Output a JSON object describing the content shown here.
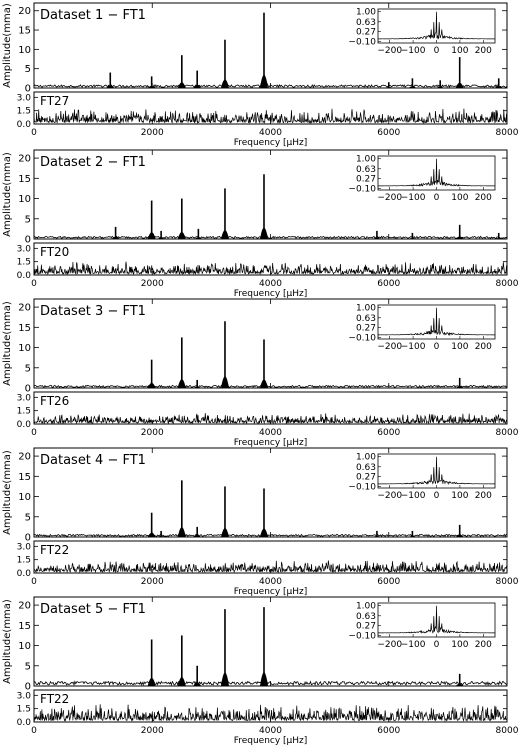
{
  "figure": {
    "xlabel": "Frequency [μHz]",
    "ylabel": "Amplitude(mma)",
    "xlim": [
      0,
      8000
    ],
    "xticks": [
      "0",
      "2000",
      "4000",
      "6000",
      "8000"
    ],
    "main_ylim": [
      0,
      22
    ],
    "main_yticks": [
      "0",
      "5",
      "10",
      "15",
      "20"
    ],
    "residual_ylim": [
      0,
      3.6
    ],
    "residual_yticks": [
      "0.0",
      "1.5",
      "3.0"
    ],
    "window_xlim": [
      -250,
      250
    ],
    "window_ylim": [
      -0.15,
      1.1
    ],
    "window_xticks": [
      "−200",
      "−100",
      "0",
      "100",
      "200"
    ],
    "window_yticks": [
      "1.00",
      "0.63",
      "0.27",
      "−0.10"
    ]
  },
  "chart_data": [
    {
      "type": "line",
      "title": "Dataset 1 − FT1",
      "residual_label": "FT27",
      "peaks": [
        {
          "x": 1290,
          "y": 4.0
        },
        {
          "x": 1990,
          "y": 3.0
        },
        {
          "x": 2500,
          "y": 8.5
        },
        {
          "x": 2760,
          "y": 4.5
        },
        {
          "x": 3230,
          "y": 12.5
        },
        {
          "x": 3890,
          "y": 19.5
        },
        {
          "x": 6000,
          "y": 1.5
        },
        {
          "x": 6400,
          "y": 2.5
        },
        {
          "x": 6870,
          "y": 2.0
        },
        {
          "x": 7200,
          "y": 8.0
        },
        {
          "x": 7860,
          "y": 2.5
        }
      ],
      "noise": 0.5,
      "residual_noise": 0.7
    },
    {
      "type": "line",
      "title": "Dataset 2 − FT1",
      "residual_label": "FT20",
      "peaks": [
        {
          "x": 1380,
          "y": 3.0
        },
        {
          "x": 1990,
          "y": 9.5
        },
        {
          "x": 2150,
          "y": 2.0
        },
        {
          "x": 2500,
          "y": 10.0
        },
        {
          "x": 2780,
          "y": 2.5
        },
        {
          "x": 3230,
          "y": 12.5
        },
        {
          "x": 3890,
          "y": 16.0
        },
        {
          "x": 5800,
          "y": 2.0
        },
        {
          "x": 6400,
          "y": 1.5
        },
        {
          "x": 7200,
          "y": 3.5
        },
        {
          "x": 7860,
          "y": 1.5
        }
      ],
      "noise": 0.4,
      "residual_noise": 0.6
    },
    {
      "type": "line",
      "title": "Dataset 3 − FT1",
      "residual_label": "FT26",
      "peaks": [
        {
          "x": 1990,
          "y": 7.0
        },
        {
          "x": 2500,
          "y": 12.5
        },
        {
          "x": 2760,
          "y": 2.0
        },
        {
          "x": 3230,
          "y": 16.5
        },
        {
          "x": 3890,
          "y": 12.0
        },
        {
          "x": 7200,
          "y": 2.5
        }
      ],
      "noise": 0.4,
      "residual_noise": 0.5
    },
    {
      "type": "line",
      "title": "Dataset 4 − FT1",
      "residual_label": "FT22",
      "peaks": [
        {
          "x": 1990,
          "y": 6.0
        },
        {
          "x": 2150,
          "y": 1.5
        },
        {
          "x": 2500,
          "y": 14.0
        },
        {
          "x": 2760,
          "y": 2.5
        },
        {
          "x": 3230,
          "y": 12.5
        },
        {
          "x": 3890,
          "y": 12.0
        },
        {
          "x": 5800,
          "y": 1.5
        },
        {
          "x": 6400,
          "y": 1.5
        },
        {
          "x": 7200,
          "y": 3.0
        }
      ],
      "noise": 0.4,
      "residual_noise": 0.6
    },
    {
      "type": "line",
      "title": "Dataset 5 − FT1",
      "residual_label": "FT22",
      "peaks": [
        {
          "x": 1990,
          "y": 11.5
        },
        {
          "x": 2500,
          "y": 12.5
        },
        {
          "x": 2760,
          "y": 5.0
        },
        {
          "x": 3230,
          "y": 19.0
        },
        {
          "x": 3890,
          "y": 19.5
        },
        {
          "x": 7200,
          "y": 3.0
        }
      ],
      "noise": 0.7,
      "residual_noise": 0.8
    }
  ]
}
